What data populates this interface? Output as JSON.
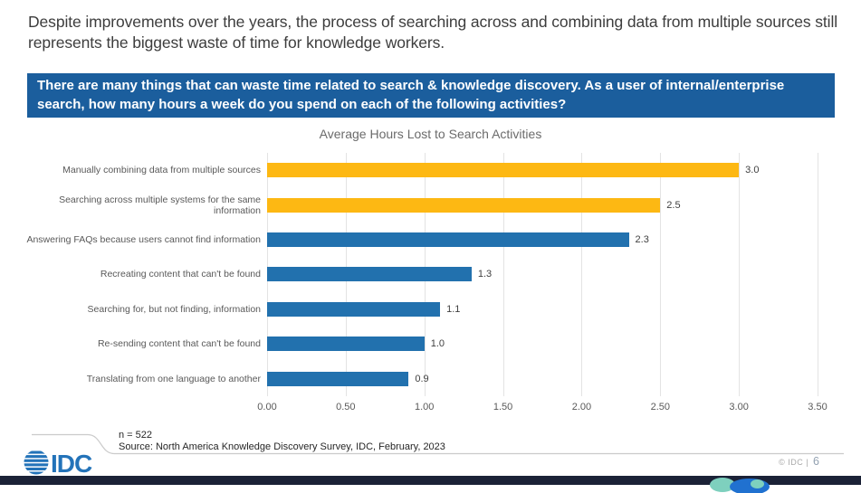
{
  "slide": {
    "headline": "Despite improvements over the years, the process of searching across and combining data from multiple sources still represents the biggest waste of time for knowledge workers.",
    "question_banner": "There are many things that can waste time related to search & knowledge discovery. As a user of internal/enterprise search, how many hours a week do you spend on each of the following activities?",
    "footer": {
      "sample_size": "n = 522",
      "source": "Source: North America Knowledge Discovery Survey, IDC, February, 2023",
      "copyright": "© IDC |",
      "page_number": "6",
      "logo_text": "IDC"
    },
    "colors": {
      "banner_bg": "#1b5e9d",
      "bar_yellow": "#fdb813",
      "bar_blue": "#2271ae",
      "gridline": "#e3e3e3",
      "band_navy": "#1b2237",
      "arc_teal": "#7ed0be",
      "arc_blue": "#2071d0",
      "logo_blue": "#2373b9"
    }
  },
  "chart_data": {
    "type": "bar",
    "orientation": "horizontal",
    "title": "Average Hours Lost to Search Activities",
    "categories": [
      "Manually combining data from multiple sources",
      "Searching across multiple systems for the same information",
      "Answering FAQs because users cannot find information",
      "Recreating content that can't be found",
      "Searching for, but not finding, information",
      "Re-sending content that can't be found",
      "Translating from one language to another"
    ],
    "values": [
      3.0,
      2.5,
      2.3,
      1.3,
      1.1,
      1.0,
      0.9
    ],
    "value_labels": [
      "3.0",
      "2.5",
      "2.3",
      "1.3",
      "1.1",
      "1.0",
      "0.9"
    ],
    "bar_colors": [
      "#fdb813",
      "#fdb813",
      "#2271ae",
      "#2271ae",
      "#2271ae",
      "#2271ae",
      "#2271ae"
    ],
    "x_ticks": [
      "0.00",
      "0.50",
      "1.00",
      "1.50",
      "2.00",
      "2.50",
      "3.00",
      "3.50"
    ],
    "xlim": [
      0,
      3.5
    ],
    "xlabel": "",
    "ylabel": "",
    "grid": "vertical",
    "legend": "none"
  }
}
